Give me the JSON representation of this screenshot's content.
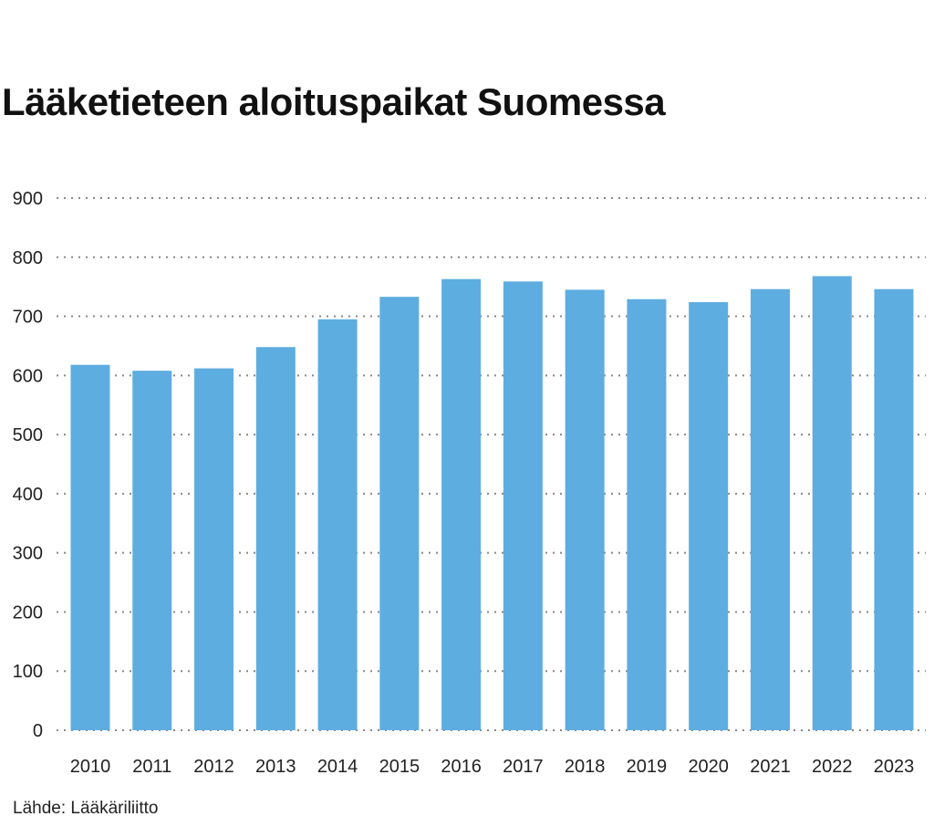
{
  "chart_data": {
    "type": "bar",
    "title": "Lääketieteen aloituspaikat Suomessa",
    "categories": [
      "2010",
      "2011",
      "2012",
      "2013",
      "2014",
      "2015",
      "2016",
      "2017",
      "2018",
      "2019",
      "2020",
      "2021",
      "2022",
      "2023"
    ],
    "values": [
      618,
      608,
      612,
      648,
      695,
      733,
      763,
      759,
      745,
      729,
      724,
      746,
      768,
      746
    ],
    "ylim": [
      0,
      900
    ],
    "yticks": [
      0,
      100,
      200,
      300,
      400,
      500,
      600,
      700,
      800,
      900
    ],
    "xlabel": "",
    "ylabel": "",
    "grid": "horizontal dotted",
    "bar_color": "#5DADE0",
    "source": "Lähde: Lääkäriliitto"
  }
}
